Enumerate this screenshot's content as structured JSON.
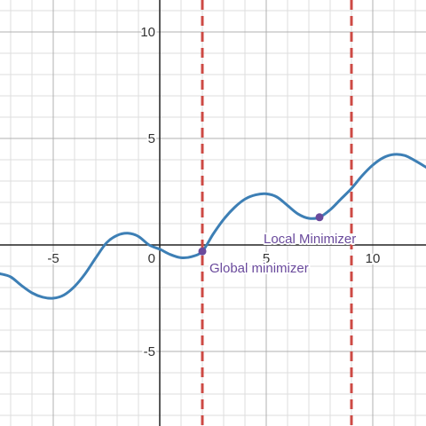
{
  "chart_data": {
    "type": "line",
    "title": "",
    "xlabel": "",
    "ylabel": "",
    "xlim": [
      -7.5,
      12.5
    ],
    "ylim": [
      -8.5,
      11.5
    ],
    "grid": true,
    "x_ticks": [
      {
        "value": -5,
        "label": "-5"
      },
      {
        "value": 0,
        "label": "0"
      },
      {
        "value": 5,
        "label": "5"
      },
      {
        "value": 10,
        "label": "10"
      }
    ],
    "y_ticks": [
      {
        "value": 10,
        "label": "10"
      },
      {
        "value": 5,
        "label": "5"
      },
      {
        "value": -5,
        "label": "-5"
      }
    ],
    "series": [
      {
        "color": "#3d7fb5",
        "x": [
          -7.5,
          -7.0,
          -6.5,
          -6.0,
          -5.5,
          -5.0,
          -4.5,
          -4.0,
          -3.5,
          -3.0,
          -2.5,
          -2.0,
          -1.5,
          -1.0,
          -0.5,
          0.0,
          0.5,
          1.0,
          1.5,
          2.0,
          2.5,
          3.0,
          3.5,
          4.0,
          4.5,
          5.0,
          5.5,
          6.0,
          6.5,
          7.0,
          7.5,
          8.0,
          8.5,
          9.0,
          9.5,
          10.0,
          10.5,
          11.0,
          11.5,
          12.0,
          12.5
        ],
        "y": [
          -1.35,
          -1.5,
          -1.9,
          -2.25,
          -2.45,
          -2.5,
          -2.35,
          -1.95,
          -1.35,
          -0.6,
          0.1,
          0.45,
          0.55,
          0.4,
          0.0,
          -0.2,
          -0.45,
          -0.6,
          -0.55,
          -0.3,
          0.5,
          1.2,
          1.75,
          2.15,
          2.35,
          2.4,
          2.25,
          1.85,
          1.45,
          1.25,
          1.3,
          1.65,
          2.15,
          2.65,
          3.25,
          3.75,
          4.1,
          4.25,
          4.2,
          3.95,
          3.65
        ]
      }
    ],
    "vertical_lines": [
      {
        "x": 2.0,
        "color": "#cd4a44",
        "style": "dashed"
      },
      {
        "x": 9.0,
        "color": "#cd4a44",
        "style": "dashed"
      }
    ],
    "points": [
      {
        "x": 2.0,
        "y": -0.3,
        "label": "Global minimizer",
        "color": "#6a4a9c"
      },
      {
        "x": 7.5,
        "y": 1.3,
        "label": "Local Minimizer",
        "color": "#6a4a9c"
      }
    ]
  }
}
